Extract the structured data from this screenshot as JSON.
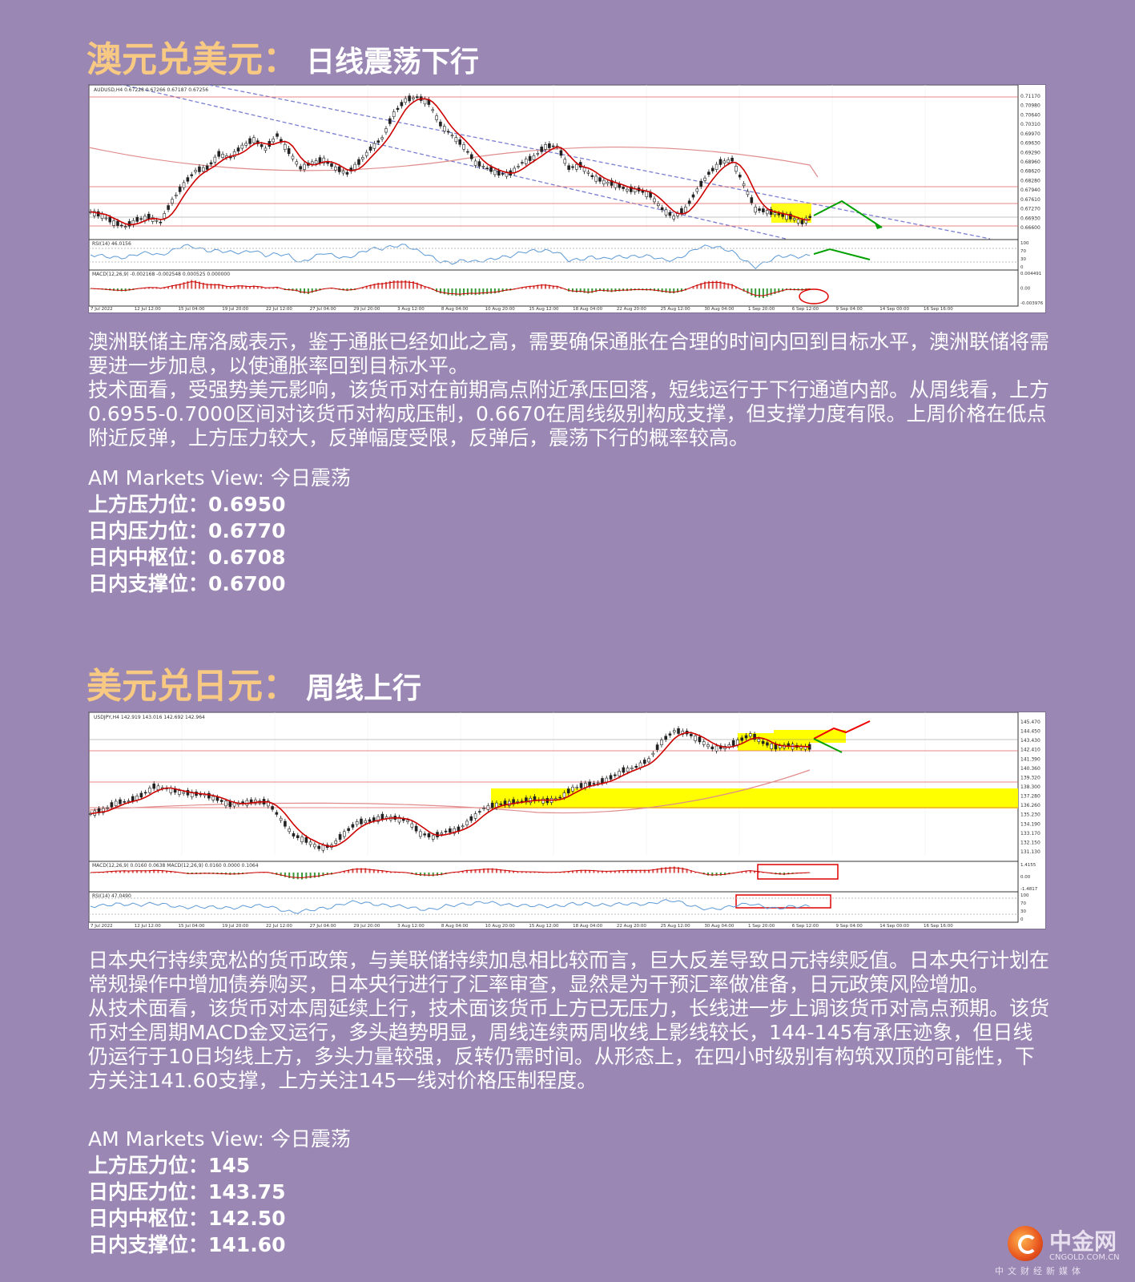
{
  "sections": [
    {
      "title_main": "澳元兑美元：",
      "title_sub": "日线震荡下行",
      "chart_header": "AUDUSD,H4  0.67228 0.67266 0.67187 0.67256",
      "rsi_label": "RSI(14) 46.0156",
      "macd_label": "MACD(12,26,9) -0.002168 -0.002548 0.000525 0.000000",
      "x_ticks": [
        "7 Jul 2022",
        "12 Jul 12:00",
        "15 Jul 04:00",
        "19 Jul 20:00",
        "22 Jul 12:00",
        "27 Jul 04:00",
        "29 Jul 20:00",
        "3 Aug 12:00",
        "8 Aug 04:00",
        "10 Aug 20:00",
        "15 Aug 12:00",
        "18 Aug 04:00",
        "22 Aug 20:00",
        "25 Aug 12:00",
        "30 Aug 04:00",
        "1 Sep 20:00",
        "6 Sep 12:00",
        "9 Sep 04:00",
        "14 Sep 00:00",
        "16 Sep 16:00"
      ],
      "y_ticks": [
        "0.71170",
        "0.70980",
        "0.70640",
        "0.70310",
        "0.69970",
        "0.69630",
        "0.69290",
        "0.68960",
        "0.68620",
        "0.68280",
        "0.67940",
        "0.67610",
        "0.67270",
        "0.66930",
        "0.66600"
      ],
      "rsi_ticks": [
        "100",
        "70",
        "30",
        "0"
      ],
      "macd_ticks": [
        "0.004491",
        "0.00",
        "-0.003976"
      ],
      "paragraphs": [
        "澳洲联储主席洛威表示，鉴于通胀已经如此之高，需要确保通胀在合理的时间内回到目标水平，澳洲联储将需要进一步加息，以使通胀率回到目标水平。",
        "技术面看，受强势美元影响，该货币对在前期高点附近承压回落，短线运行于下行通道内部。从周线看，上方0.6955-0.7000区间对该货币对构成压制，0.6670在周线级别构成支撑，但支撑力度有限。上周价格在低点附近反弹，上方压力较大，反弹幅度受限，反弹后，震荡下行的概率较高。"
      ],
      "view_header": "AM Markets View: 今日震荡",
      "levels": [
        {
          "label": "上方压力位：",
          "value": "0.6950"
        },
        {
          "label": "日内压力位：",
          "value": "0.6770"
        },
        {
          "label": "日内中枢位：",
          "value": "0.6708"
        },
        {
          "label": "日内支撑位：",
          "value": "0.6700"
        }
      ]
    },
    {
      "title_main": "美元兑日元：",
      "title_sub": "周线上行",
      "chart_header": "USDJPY,H4  142.919 143.016 142.692 142.964",
      "macd_label": "MACD(12,26,9) 0.0160 0.0638  MACD(12,26,9) 0.0160 0.0000 0.1064",
      "rsi_label": "RSI(14) 47.0490",
      "x_ticks": [
        "7 Jul 2022",
        "12 Jul 12:00",
        "15 Jul 04:00",
        "19 Jul 20:00",
        "22 Jul 12:00",
        "27 Jul 04:00",
        "29 Jul 20:00",
        "3 Aug 12:00",
        "8 Aug 04:00",
        "10 Aug 20:00",
        "15 Aug 12:00",
        "18 Aug 04:00",
        "22 Aug 20:00",
        "25 Aug 12:00",
        "30 Aug 04:00",
        "1 Sep 20:00",
        "6 Sep 12:00",
        "9 Sep 04:00",
        "14 Sep 00:00",
        "16 Sep 16:00"
      ],
      "y_ticks": [
        "145.470",
        "144.450",
        "143.430",
        "142.410",
        "141.390",
        "140.360",
        "139.320",
        "138.300",
        "137.280",
        "136.260",
        "135.230",
        "134.190",
        "133.170",
        "132.150",
        "131.130"
      ],
      "macd_ticks": [
        "1.4155",
        "0.00",
        "-1.4817"
      ],
      "rsi_ticks": [
        "100",
        "70",
        "30",
        "0"
      ],
      "paragraphs": [
        "日本央行持续宽松的货币政策，与美联储持续加息相比较而言，巨大反差导致日元持续贬值。日本央行计划在常规操作中增加债券购买，日本央行进行了汇率审查，显然是为干预汇率做准备，日元政策风险增加。",
        "从技术面看，该货币对本周延续上行，技术面该货币上方已无压力，长线进一步上调该货币对高点预期。该货币对全周期MACD金叉运行，多头趋势明显，周线连续两周收线上影线较长，144-145有承压迹象，但日线仍运行于10日均线上方，多头力量较强，反转仍需时间。从形态上，在四小时级别有构筑双顶的可能性，下方关注141.60支撑，上方关注145一线对价格压制程度。"
      ],
      "view_header": "AM Markets View: 今日震荡",
      "levels": [
        {
          "label": "上方压力位：",
          "value": "145"
        },
        {
          "label": "日内压力位：",
          "value": "143.75"
        },
        {
          "label": "日内中枢位：",
          "value": "142.50"
        },
        {
          "label": "日内支撑位：",
          "value": "141.60"
        }
      ]
    }
  ],
  "chart_data": [
    {
      "type": "line",
      "series": [
        {
          "values": [
            0.672,
            0.6705,
            0.668,
            0.6665,
            0.669,
            0.67,
            0.668,
            0.676,
            0.682,
            0.687,
            0.688,
            0.693,
            0.692,
            0.696,
            0.6985,
            0.695,
            0.7,
            0.694,
            0.688,
            0.69,
            0.691,
            0.688,
            0.686,
            0.69,
            0.695,
            0.699,
            0.708,
            0.713,
            0.714,
            0.712,
            0.704,
            0.7,
            0.696,
            0.69,
            0.688,
            0.686,
            0.686,
            0.69,
            0.692,
            0.696,
            0.696,
            0.688,
            0.689,
            0.685,
            0.683,
            0.682,
            0.68,
            0.68,
            0.678,
            0.673,
            0.67,
            0.673,
            0.68,
            0.686,
            0.69,
            0.691,
            0.682,
            0.673,
            0.672,
            0.671,
            0.67,
            0.668,
            0.671
          ]
        }
      ]
    },
    {
      "type": "line",
      "series": [
        {
          "values": [
            135.6,
            136.0,
            136.8,
            137.0,
            137.6,
            138.6,
            138.4,
            138.0,
            137.8,
            137.7,
            137.2,
            136.6,
            136.8,
            137.0,
            136.8,
            135.0,
            133.2,
            132.6,
            131.8,
            132.0,
            133.4,
            134.6,
            134.8,
            135.2,
            135.1,
            134.8,
            133.4,
            133.0,
            133.6,
            133.8,
            135.0,
            136.2,
            136.6,
            136.8,
            137.0,
            137.2,
            137.0,
            137.4,
            138.4,
            138.8,
            139.0,
            139.6,
            140.4,
            140.8,
            141.6,
            143.6,
            144.8,
            144.6,
            143.8,
            142.9,
            143.0,
            143.6,
            144.4,
            143.5,
            143.0,
            143.2,
            143.0,
            142.96
          ]
        }
      ]
    }
  ]
}
